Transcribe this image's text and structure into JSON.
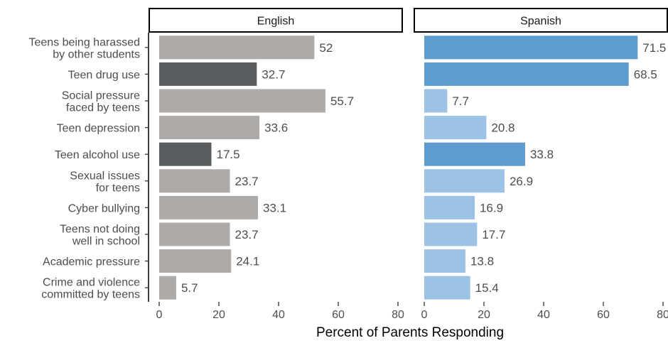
{
  "chart_data": {
    "type": "bar",
    "orientation": "horizontal",
    "xlabel": "Percent of Parents Responding",
    "xlim": [
      0,
      80
    ],
    "xticks": [
      0,
      20,
      40,
      60,
      80
    ],
    "grid": false,
    "categories": [
      [
        "Teens being harassed",
        "by other students"
      ],
      [
        "Teen drug use"
      ],
      [
        "Social pressure",
        "faced by teens"
      ],
      [
        "Teen depression"
      ],
      [
        "Teen alcohol use"
      ],
      [
        "Sexual issues",
        "for teens"
      ],
      [
        "Cyber bullying"
      ],
      [
        "Teens not doing",
        "well in school"
      ],
      [
        "Academic pressure"
      ],
      [
        "Crime and violence",
        "committed by teens"
      ]
    ],
    "panels": [
      {
        "name": "English",
        "values": [
          52,
          32.7,
          55.7,
          33.6,
          17.5,
          23.7,
          33.1,
          23.7,
          24.1,
          5.7
        ],
        "value_labels": [
          "52",
          "32.7",
          "55.7",
          "33.6",
          "17.5",
          "23.7",
          "33.1",
          "23.7",
          "24.1",
          "5.7"
        ],
        "highlight": [
          false,
          true,
          false,
          false,
          true,
          false,
          false,
          false,
          false,
          false
        ],
        "color": "#aeaaa8",
        "highlight_color": "#585d5f"
      },
      {
        "name": "Spanish",
        "values": [
          71.5,
          68.5,
          7.7,
          20.8,
          33.8,
          26.9,
          16.9,
          17.7,
          13.8,
          15.4
        ],
        "value_labels": [
          "71.5",
          "68.5",
          "7.7",
          "20.8",
          "33.8",
          "26.9",
          "16.9",
          "17.7",
          "13.8",
          "15.4"
        ],
        "highlight": [
          true,
          true,
          false,
          false,
          true,
          false,
          false,
          false,
          false,
          false
        ],
        "color": "#9cc2e5",
        "highlight_color": "#5e9bcf"
      }
    ]
  }
}
